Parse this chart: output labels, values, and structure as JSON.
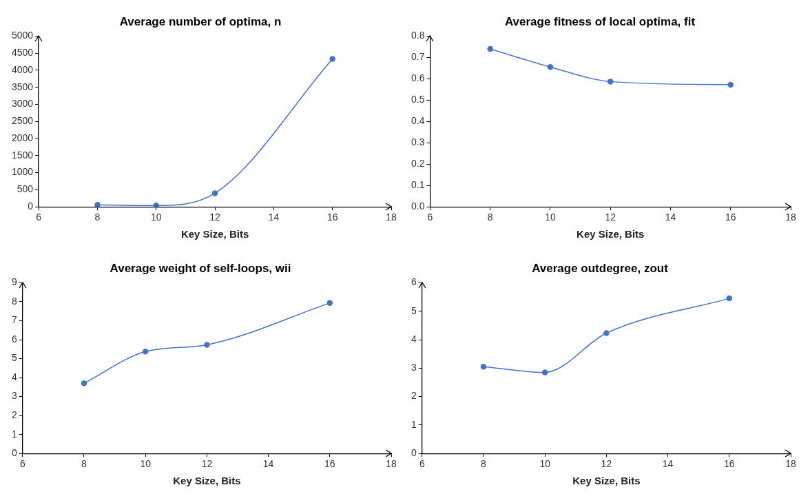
{
  "chart_data": [
    {
      "type": "line",
      "title": "Average number of optima, n",
      "xlabel": "Key Size, Bits",
      "x": [
        8,
        10,
        12,
        16
      ],
      "marker": "circle",
      "grid": false,
      "series": [
        {
          "color": "#4472c4",
          "values": [
            60,
            40,
            400,
            4330
          ]
        }
      ],
      "xlim": [
        6,
        18
      ],
      "xticks": [
        6,
        8,
        10,
        12,
        14,
        16,
        18
      ],
      "ylim": [
        0,
        5000
      ],
      "yticks": [
        0,
        500,
        1000,
        1500,
        2000,
        2500,
        3000,
        3500,
        4000,
        4500,
        5000
      ]
    },
    {
      "type": "line",
      "title": "Average fitness of local optima, fit",
      "xlabel": "Key Size, Bits",
      "x": [
        8,
        10,
        12,
        16
      ],
      "marker": "circle",
      "grid": false,
      "series": [
        {
          "color": "#4472c4",
          "values": [
            0.74,
            0.655,
            0.587,
            0.572
          ]
        }
      ],
      "xlim": [
        6,
        18
      ],
      "xticks": [
        6,
        8,
        10,
        12,
        14,
        16,
        18
      ],
      "ylim": [
        0,
        0.8
      ],
      "yticks": [
        {
          "value": 0,
          "label": "0.0"
        },
        0.1,
        0.2,
        0.3,
        0.4,
        0.5,
        0.6,
        0.7,
        0.8
      ]
    },
    {
      "type": "line",
      "title": "Average weight of self-loops, wii",
      "xlabel": "Key Size, Bits",
      "x": [
        8,
        10,
        12,
        16
      ],
      "marker": "circle",
      "grid": false,
      "series": [
        {
          "color": "#4472c4",
          "values": [
            3.7,
            5.37,
            5.73,
            7.93
          ]
        }
      ],
      "xlim": [
        6,
        18
      ],
      "xticks": [
        6,
        8,
        10,
        12,
        14,
        16,
        18
      ],
      "ylim": [
        0,
        9
      ],
      "yticks": [
        0,
        1,
        2,
        3,
        4,
        5,
        6,
        7,
        8,
        9
      ]
    },
    {
      "type": "line",
      "title": "Average outdegree, zout",
      "xlabel": "Key Size, Bits",
      "x": [
        8,
        10,
        12,
        16
      ],
      "marker": "circle",
      "grid": false,
      "series": [
        {
          "color": "#4472c4",
          "values": [
            3.05,
            2.85,
            4.23,
            5.45
          ]
        }
      ],
      "xlim": [
        6,
        18
      ],
      "xticks": [
        6,
        8,
        10,
        12,
        14,
        16,
        18
      ],
      "ylim": [
        0,
        6
      ],
      "yticks": [
        0,
        1,
        2,
        3,
        4,
        5,
        6
      ]
    }
  ]
}
